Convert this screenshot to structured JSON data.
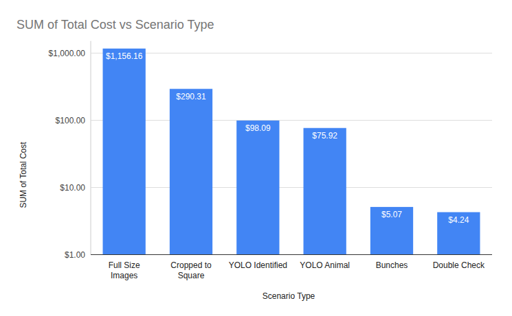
{
  "chart_data": {
    "type": "bar",
    "title": "SUM of Total Cost vs Scenario Type",
    "x_label": "Scenario Type",
    "y_label": "SUM of Total Cost",
    "categories": [
      "Full Size Images",
      "Cropped to Square",
      "YOLO Identified",
      "YOLO Animal",
      "Bunches",
      "Double Check"
    ],
    "values": [
      1156.16,
      290.31,
      98.09,
      75.92,
      5.07,
      4.24
    ],
    "value_labels": [
      "$1,156.16",
      "$290.31",
      "$98.09",
      "$75.92",
      "$5.07",
      "$4.24"
    ],
    "color": "#4285f4",
    "log": "y",
    "ylim": [
      1,
      1500
    ],
    "yticks": [
      {
        "value": 1,
        "label": "$1.00"
      },
      {
        "value": 10,
        "label": "$10.00"
      },
      {
        "value": 100,
        "label": "$100.00"
      },
      {
        "value": 1000,
        "label": "$1,000.00"
      }
    ],
    "grid": true,
    "data_labels": true
  }
}
